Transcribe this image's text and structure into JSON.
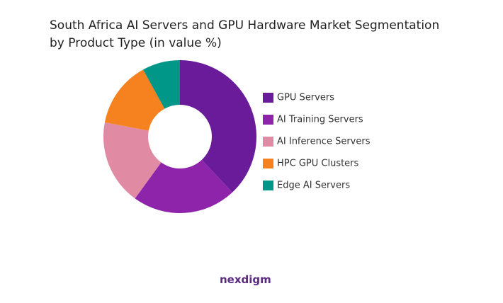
{
  "chart_data": {
    "type": "donut",
    "title": "South Africa AI Servers and GPU Hardware Market Segmentation by Product Type (in value %)",
    "categories": [
      "GPU Servers",
      "AI Training Servers",
      "AI Inference Servers",
      "HPC GPU Clusters",
      "Edge AI Servers"
    ],
    "values": [
      38,
      22,
      18,
      14,
      8
    ],
    "colors": [
      "#6a1b9a",
      "#8e24aa",
      "#e08aa4",
      "#f5821f",
      "#009688"
    ],
    "legend": "right"
  },
  "brand": "nexdigm"
}
